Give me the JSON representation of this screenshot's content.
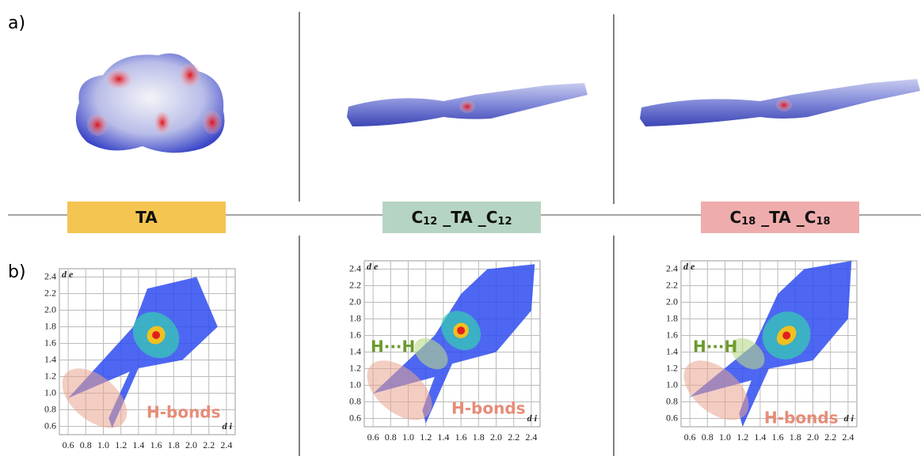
{
  "figure": {
    "panel_labels": [
      "a)",
      "b)"
    ],
    "compounds": [
      {
        "label": [
          {
            "text": "TA"
          }
        ],
        "color": "#f5c551"
      },
      {
        "label": [
          {
            "text": "C"
          },
          {
            "text": "12",
            "sub": true
          },
          {
            "text": " _TA _C"
          },
          {
            "text": "12",
            "sub": true
          }
        ],
        "color": "#b6d4c3"
      },
      {
        "label": [
          {
            "text": "C"
          },
          {
            "text": "18",
            "sub": true
          },
          {
            "text": " _TA _C"
          },
          {
            "text": "18",
            "sub": true
          }
        ],
        "color": "#eeadac"
      }
    ],
    "plots": [
      {
        "y_axis_label": "d e",
        "x_axis_label": "d i",
        "xticks": [
          "0.6",
          "0.8",
          "1.0",
          "1.2",
          "1.4",
          "1.6",
          "1.8",
          "2.0",
          "2.2",
          "2.4"
        ],
        "yticks": [
          "2.4",
          "2.2",
          "2.0",
          "1.8",
          "1.6",
          "1.4",
          "1.2",
          "1.0",
          "0.8",
          "0.6"
        ],
        "annotations": [
          "H-bonds"
        ]
      },
      {
        "y_axis_label": "d e",
        "x_axis_label": "d i",
        "xticks": [
          "0.6",
          "0.8",
          "1.0",
          "1.2",
          "1.4",
          "1.6",
          "1.8",
          "2.0",
          "2.2",
          "2.4"
        ],
        "yticks": [
          "2.4",
          "2.2",
          "2.0",
          "1.8",
          "1.6",
          "1.4",
          "1.2",
          "1.0",
          "0.8",
          "0.6"
        ],
        "annotations": [
          "H···H",
          "H-bonds"
        ]
      },
      {
        "y_axis_label": "d e",
        "x_axis_label": "d i",
        "xticks": [
          "0.6",
          "0.8",
          "1.0",
          "1.2",
          "1.4",
          "1.6",
          "1.8",
          "2.0",
          "2.2",
          "2.4"
        ],
        "yticks": [
          "2.4",
          "2.2",
          "2.0",
          "1.8",
          "1.6",
          "1.4",
          "1.2",
          "1.0",
          "0.8",
          "0.6"
        ],
        "annotations": [
          "H···H",
          "H-bonds"
        ]
      }
    ]
  }
}
